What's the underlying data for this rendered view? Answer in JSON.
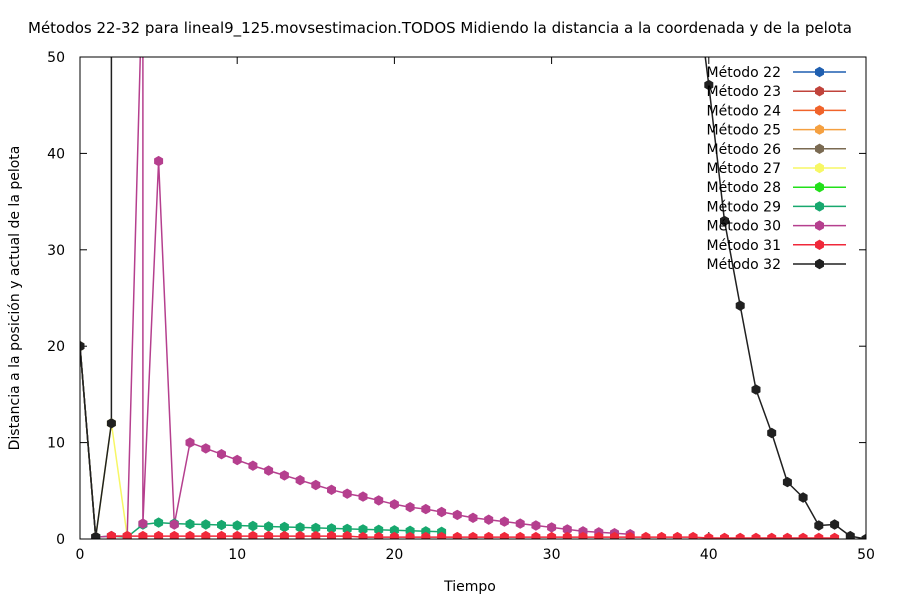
{
  "chart_data": {
    "type": "line",
    "title": "Métodos 22-32 para lineal9_125.movsestimacion.TODOS Midiendo la distancia a la coordenada y de la pelota",
    "xlabel": "Tiempo",
    "ylabel": "Distancia a la posición y actual de la pelota",
    "xlim": [
      0,
      50
    ],
    "ylim": [
      0,
      50
    ],
    "xticks": [
      0,
      10,
      20,
      30,
      40,
      50
    ],
    "yticks": [
      0,
      10,
      20,
      30,
      40,
      50
    ],
    "grid": false,
    "legend_position": "top-right",
    "series": [
      {
        "name": "Método 22",
        "color": "#1f5fb0",
        "points": [
          [
            0,
            20
          ],
          [
            1,
            0.2
          ]
        ]
      },
      {
        "name": "Método 23",
        "color": "#c0433b",
        "points": [
          [
            0,
            20
          ],
          [
            1,
            0.2
          ]
        ]
      },
      {
        "name": "Método 24",
        "color": "#f0632a",
        "points": [
          [
            0,
            20
          ],
          [
            1,
            0.2
          ]
        ]
      },
      {
        "name": "Método 25",
        "color": "#f5a040",
        "points": [
          [
            0,
            20
          ],
          [
            1,
            0.2
          ]
        ]
      },
      {
        "name": "Método 26",
        "color": "#7a6a52",
        "points": [
          [
            0,
            20
          ],
          [
            1,
            0.2
          ]
        ]
      },
      {
        "name": "Método 27",
        "color": "#f7f765",
        "points": [
          [
            0,
            20
          ],
          [
            1,
            0.2
          ],
          [
            2,
            12
          ],
          [
            3,
            0.3
          ]
        ]
      },
      {
        "name": "Método 28",
        "color": "#22e01a",
        "points": [
          [
            0,
            20
          ],
          [
            1,
            0.2
          ]
        ]
      },
      {
        "name": "Método 29",
        "color": "#17a86e",
        "points": [
          [
            0,
            20
          ],
          [
            1,
            0.2
          ],
          [
            2,
            0.3
          ],
          [
            3,
            0.2
          ],
          [
            4,
            1.5
          ],
          [
            5,
            1.7
          ],
          [
            6,
            1.6
          ],
          [
            7,
            1.55
          ],
          [
            8,
            1.5
          ],
          [
            9,
            1.45
          ],
          [
            10,
            1.4
          ],
          [
            11,
            1.35
          ],
          [
            12,
            1.3
          ],
          [
            13,
            1.25
          ],
          [
            14,
            1.2
          ],
          [
            15,
            1.15
          ],
          [
            16,
            1.1
          ],
          [
            17,
            1.05
          ],
          [
            18,
            1.0
          ],
          [
            19,
            0.95
          ],
          [
            20,
            0.9
          ],
          [
            21,
            0.85
          ],
          [
            22,
            0.8
          ],
          [
            23,
            0.75
          ]
        ]
      },
      {
        "name": "Método 30",
        "color": "#b53f8e",
        "points": [
          [
            0,
            20
          ],
          [
            1,
            0.2
          ],
          [
            2,
            0.3
          ],
          [
            3,
            0.3
          ],
          [
            4,
            60
          ],
          [
            4,
            1.6
          ],
          [
            5,
            39.2
          ],
          [
            6,
            1.5
          ],
          [
            7,
            10
          ],
          [
            8,
            9.4
          ],
          [
            9,
            8.8
          ],
          [
            10,
            8.2
          ],
          [
            11,
            7.6
          ],
          [
            12,
            7.1
          ],
          [
            13,
            6.6
          ],
          [
            14,
            6.1
          ],
          [
            15,
            5.6
          ],
          [
            16,
            5.1
          ],
          [
            17,
            4.7
          ],
          [
            18,
            4.4
          ],
          [
            19,
            4.0
          ],
          [
            20,
            3.6
          ],
          [
            21,
            3.3
          ],
          [
            22,
            3.1
          ],
          [
            23,
            2.8
          ],
          [
            24,
            2.5
          ],
          [
            25,
            2.2
          ],
          [
            26,
            2.0
          ],
          [
            27,
            1.8
          ],
          [
            28,
            1.6
          ],
          [
            29,
            1.4
          ],
          [
            30,
            1.2
          ],
          [
            31,
            1.0
          ],
          [
            32,
            0.8
          ],
          [
            33,
            0.7
          ],
          [
            34,
            0.6
          ],
          [
            35,
            0.5
          ]
        ]
      },
      {
        "name": "Método 31",
        "color": "#f0283a",
        "points": [
          [
            2,
            0.3
          ],
          [
            3,
            0.3
          ],
          [
            4,
            0.3
          ],
          [
            5,
            0.3
          ],
          [
            6,
            0.3
          ],
          [
            7,
            0.3
          ],
          [
            8,
            0.3
          ],
          [
            9,
            0.3
          ],
          [
            10,
            0.3
          ],
          [
            11,
            0.3
          ],
          [
            12,
            0.3
          ],
          [
            13,
            0.3
          ],
          [
            14,
            0.3
          ],
          [
            15,
            0.3
          ],
          [
            16,
            0.3
          ],
          [
            17,
            0.3
          ],
          [
            18,
            0.2
          ],
          [
            19,
            0.2
          ],
          [
            20,
            0.2
          ],
          [
            21,
            0.2
          ],
          [
            22,
            0.2
          ],
          [
            23,
            0.2
          ],
          [
            24,
            0.2
          ],
          [
            25,
            0.2
          ],
          [
            26,
            0.2
          ],
          [
            27,
            0.2
          ],
          [
            28,
            0.2
          ],
          [
            29,
            0.2
          ],
          [
            30,
            0.2
          ],
          [
            31,
            0.2
          ],
          [
            32,
            0.2
          ],
          [
            33,
            0.2
          ],
          [
            34,
            0.2
          ],
          [
            35,
            0.2
          ],
          [
            36,
            0.2
          ],
          [
            37,
            0.2
          ],
          [
            38,
            0.2
          ],
          [
            39,
            0.2
          ],
          [
            40,
            0.1
          ],
          [
            41,
            0.1
          ],
          [
            42,
            0.1
          ],
          [
            43,
            0.1
          ],
          [
            44,
            0.1
          ],
          [
            45,
            0.1
          ],
          [
            46,
            0.1
          ],
          [
            47,
            0.1
          ],
          [
            48,
            0.1
          ]
        ]
      },
      {
        "name": "Método 32",
        "color": "#202020",
        "points": [
          [
            0,
            20
          ],
          [
            1,
            0.2
          ],
          [
            2,
            12
          ],
          [
            2,
            60
          ],
          [
            39,
            60
          ],
          [
            40,
            47.1
          ],
          [
            41,
            33
          ],
          [
            42,
            24.2
          ],
          [
            43,
            15.5
          ],
          [
            44,
            11
          ],
          [
            45,
            5.9
          ],
          [
            46,
            4.3
          ],
          [
            47,
            1.4
          ],
          [
            48,
            1.5
          ],
          [
            49,
            0.3
          ],
          [
            50,
            0
          ]
        ]
      }
    ]
  }
}
